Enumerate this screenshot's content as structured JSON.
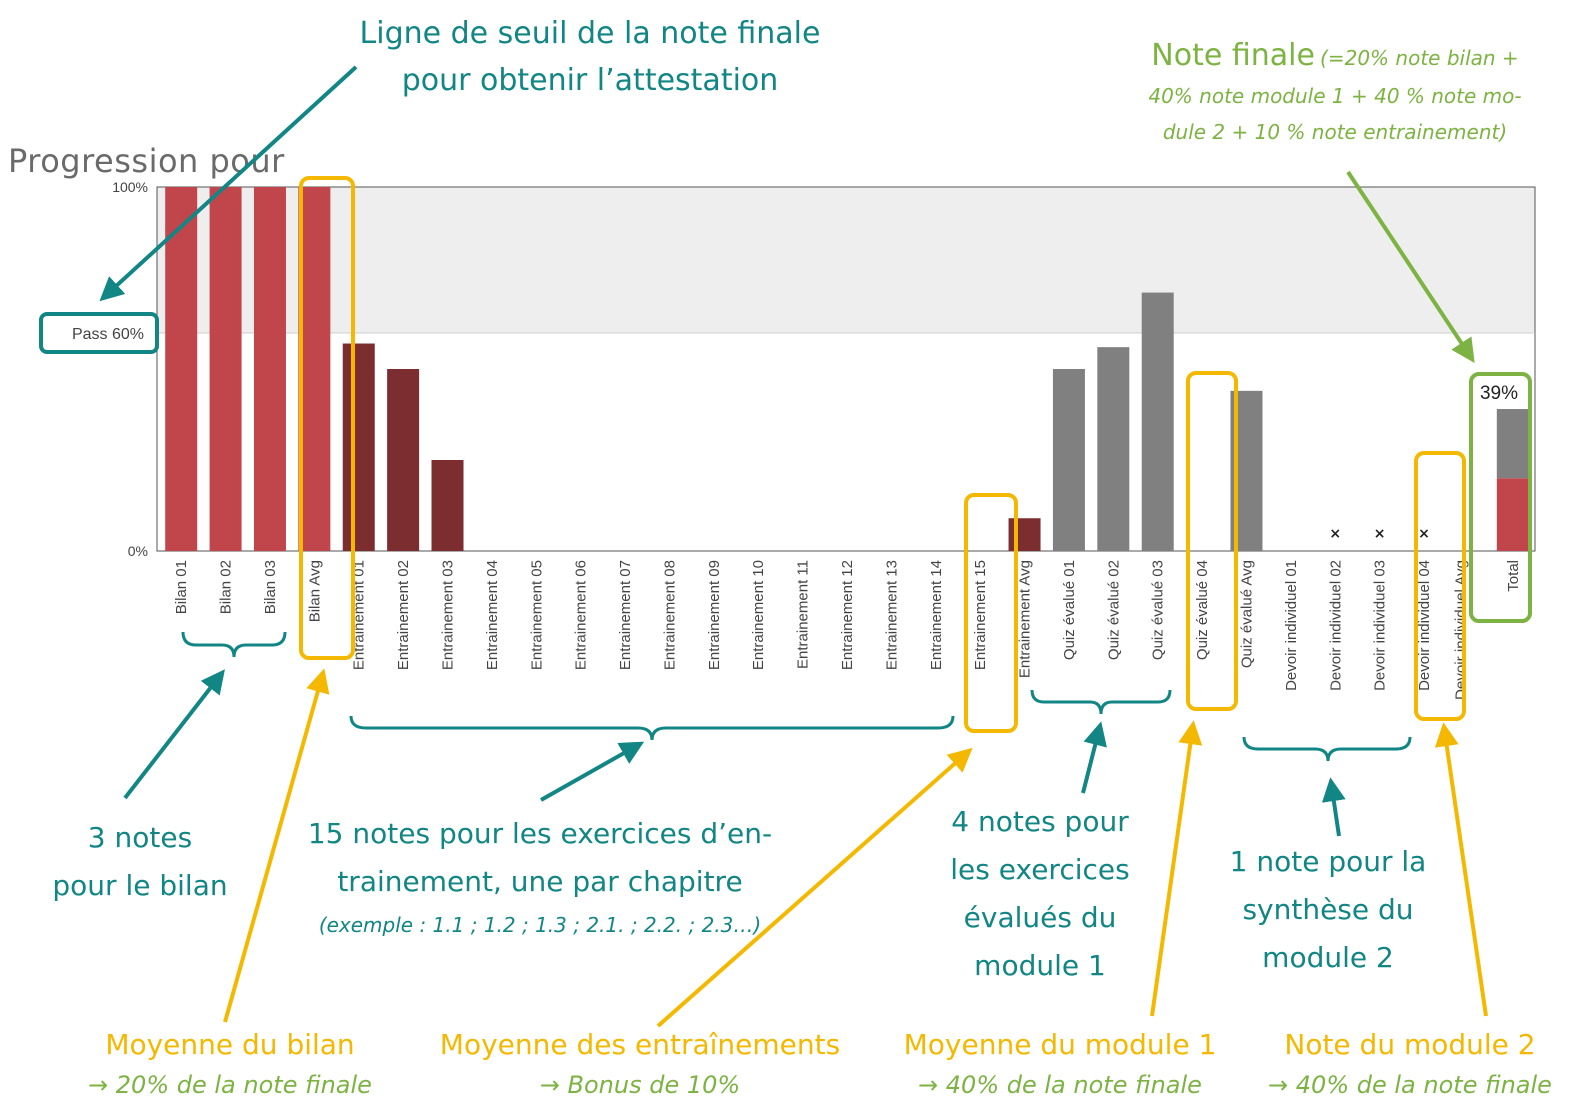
{
  "chart_data": {
    "type": "bar",
    "title": "Progression pour",
    "ylim": [
      0,
      100
    ],
    "y_ticks": [
      "0%",
      "100%"
    ],
    "pass_line": {
      "value": 60,
      "label": "Pass 60%"
    },
    "categories": [
      "Bilan 01",
      "Bilan 02",
      "Bilan 03",
      "Bilan Avg",
      "Entrainement 01",
      "Entrainement 02",
      "Entrainement 03",
      "Entrainement 04",
      "Entrainement 05",
      "Entrainement 06",
      "Entrainement 07",
      "Entrainement 08",
      "Entrainement 09",
      "Entrainement 10",
      "Entrainement 11",
      "Entrainement 12",
      "Entrainement 13",
      "Entrainement 14",
      "Entrainement 15",
      "Entrainement Avg",
      "Quiz évalué 01",
      "Quiz évalué 02",
      "Quiz évalué 03",
      "Quiz évalué 04",
      "Quiz évalué Avg",
      "Devoir individuel 01",
      "Devoir individuel 02",
      "Devoir individuel 03",
      "Devoir individuel 04",
      "Devoir individuel Avg",
      "Total"
    ],
    "values": [
      100,
      100,
      100,
      100,
      57,
      50,
      25,
      0,
      0,
      0,
      0,
      0,
      0,
      0,
      0,
      0,
      0,
      0,
      0,
      9,
      50,
      56,
      71,
      0,
      44,
      0,
      0,
      0,
      0,
      0,
      39
    ],
    "bar_colors": [
      "#c0464c",
      "#c0464c",
      "#c0464c",
      "#c0464c",
      "#7b2d30",
      "#7b2d30",
      "#7b2d30",
      "#7b2d30",
      "#7b2d30",
      "#7b2d30",
      "#7b2d30",
      "#7b2d30",
      "#7b2d30",
      "#7b2d30",
      "#7b2d30",
      "#7b2d30",
      "#7b2d30",
      "#7b2d30",
      "#7b2d30",
      "#7b2d30",
      "#808080",
      "#808080",
      "#808080",
      "#808080",
      "#808080",
      "#808080",
      "#808080",
      "#808080",
      "#808080",
      "#808080",
      "#808080"
    ],
    "excused_markers": [
      "Devoir individuel 02",
      "Devoir individuel 03",
      "Devoir individuel 04"
    ],
    "total_stack": [
      {
        "name": "bilan",
        "value": 20,
        "color": "#c0464c"
      },
      {
        "name": "reste",
        "value": 19,
        "color": "#808080"
      }
    ],
    "total_label": "39%",
    "grid": false
  },
  "annotations": {
    "threshold_line1": "Ligne de seuil de la note finale",
    "threshold_line2": "pour obtenir l’attestation",
    "final_title": "Note finale",
    "final_formula1": "(=20% note bilan +",
    "final_formula2": "40% note module 1 + 40 % note mo-",
    "final_formula3": "dule 2 + 10 % note entrainement)",
    "bilan_count1": "3 notes",
    "bilan_count2": "pour le bilan",
    "entr_count1": "15 notes pour les exercices d’en-",
    "entr_count2": "trainement, une par chapitre",
    "entr_example": "(exemple : 1.1 ; 1.2 ; 1.3 ; 2.1. ; 2.2. ; 2.3…)",
    "quiz_count1": "4 notes pour",
    "quiz_count2": "les exercices",
    "quiz_count3": "évalués du",
    "quiz_count4": "module 1",
    "devoir_count1": "1 note pour la",
    "devoir_count2": "synthèse du",
    "devoir_count3": "module 2",
    "avg_bilan": "Moyenne du bilan",
    "avg_bilan_sub": "→ 20% de la note finale",
    "avg_entr": "Moyenne des entraînements",
    "avg_entr_sub": "→ Bonus de 10%",
    "avg_mod1": "Moyenne du module 1",
    "avg_mod1_sub": "→ 40% de la note finale",
    "avg_mod2": "Note du module 2",
    "avg_mod2_sub": "→ 40% de la note finale"
  }
}
